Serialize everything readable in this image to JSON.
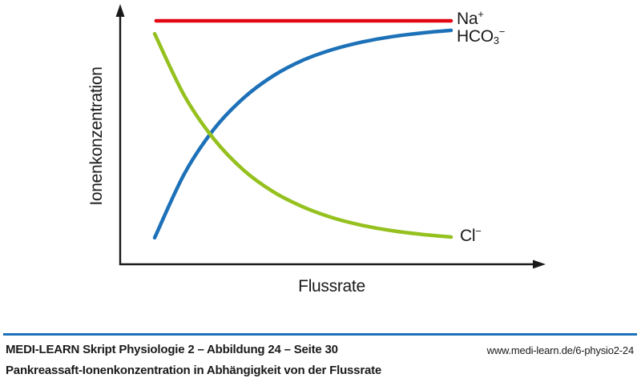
{
  "chart": {
    "y_axis_label": "Ionenkonzentration",
    "x_axis_label": "Flussrate",
    "series_labels": {
      "na": {
        "base": "Na",
        "sub": "",
        "sup": "+"
      },
      "hco3": {
        "base": "HCO",
        "sub": "3",
        "sup": "−"
      },
      "cl": {
        "base": "Cl",
        "sub": "",
        "sup": "−"
      }
    }
  },
  "chart_data": {
    "type": "line",
    "title": "",
    "xlabel": "Flussrate",
    "ylabel": "Ionenkonzentration",
    "x_range": [
      0,
      1
    ],
    "y_range": [
      0,
      1
    ],
    "grid": false,
    "axes_have_arrowheads": true,
    "tick_labels": "none (qualitative axes)",
    "legend_position": "right of curve endpoints",
    "series": [
      {
        "name": "Na+",
        "color": "#e30613",
        "x": [
          0.005,
          1.0
        ],
        "y": [
          1.0,
          1.0
        ]
      },
      {
        "name": "HCO3−",
        "color": "#1d71b8",
        "x": [
          0,
          0.1,
          0.2,
          0.3,
          0.4,
          0.5,
          0.6,
          0.7,
          0.8,
          0.9,
          1.0
        ],
        "y": [
          0.109,
          0.371,
          0.555,
          0.683,
          0.774,
          0.838,
          0.882,
          0.913,
          0.935,
          0.95,
          0.961
        ]
      },
      {
        "name": "Cl−",
        "color": "#95c11f",
        "x": [
          0,
          0.1,
          0.2,
          0.3,
          0.4,
          0.5,
          0.6,
          0.7,
          0.8,
          0.9,
          1.0
        ],
        "y": [
          0.947,
          0.693,
          0.514,
          0.387,
          0.298,
          0.236,
          0.191,
          0.16,
          0.138,
          0.123,
          0.112
        ]
      }
    ]
  },
  "footer": {
    "source_line": "MEDI-LEARN Skript Physiologie 2 – Abbildung 24 – Seite 30",
    "url": "www.medi-learn.de/6-physio2-24",
    "caption": "Pankreassaft-Ionenkonzentration in Abhängigkeit von der Flussrate",
    "divider_color": "#1d71b8"
  },
  "colors": {
    "na_line": "#e30613",
    "hco3_line": "#1d71b8",
    "cl_line": "#95c11f",
    "axis": "#1a1a1a",
    "text": "#1a1a1a"
  }
}
